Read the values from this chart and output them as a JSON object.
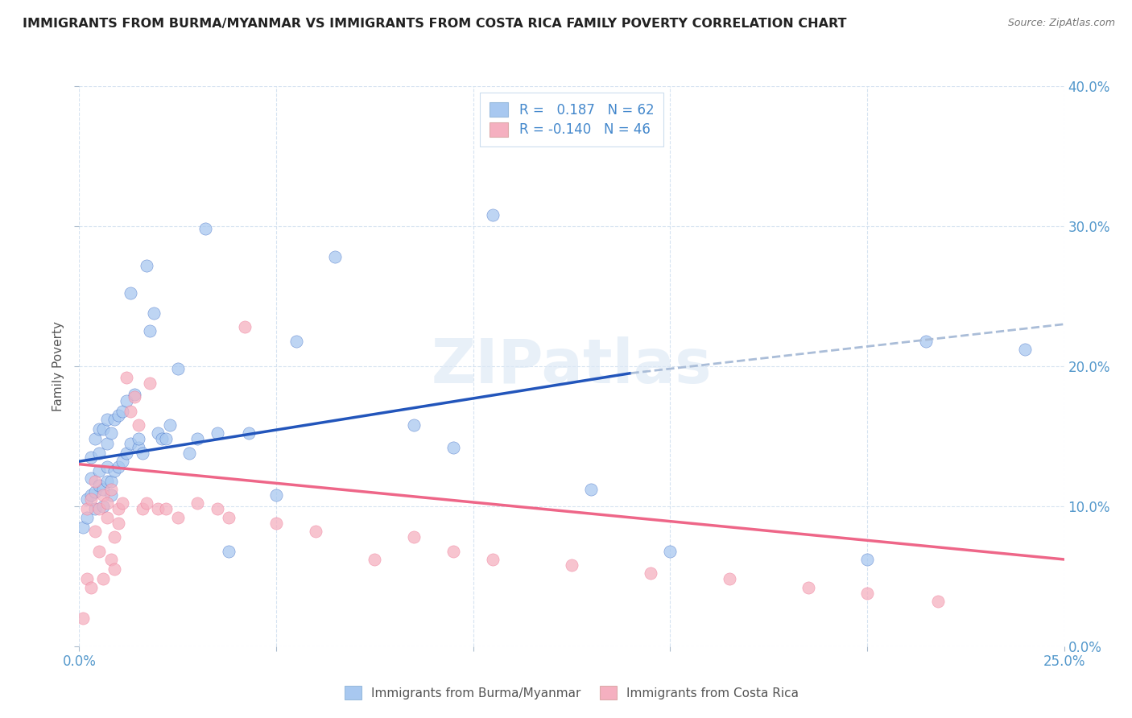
{
  "title": "IMMIGRANTS FROM BURMA/MYANMAR VS IMMIGRANTS FROM COSTA RICA FAMILY POVERTY CORRELATION CHART",
  "source": "Source: ZipAtlas.com",
  "xlim": [
    0.0,
    0.25
  ],
  "ylim": [
    0.0,
    0.4
  ],
  "blue_color": "#A8C8F0",
  "pink_color": "#F5B0C0",
  "blue_line_color": "#2255BB",
  "pink_line_color": "#EE6688",
  "dashed_line_color": "#AABDD8",
  "legend_R_blue": "0.187",
  "legend_N_blue": "62",
  "legend_R_pink": "-0.140",
  "legend_N_pink": "46",
  "legend_label_blue": "Immigrants from Burma/Myanmar",
  "legend_label_pink": "Immigrants from Costa Rica",
  "blue_scatter_x": [
    0.001,
    0.002,
    0.002,
    0.003,
    0.003,
    0.003,
    0.004,
    0.004,
    0.004,
    0.005,
    0.005,
    0.005,
    0.005,
    0.006,
    0.006,
    0.006,
    0.007,
    0.007,
    0.007,
    0.007,
    0.008,
    0.008,
    0.008,
    0.009,
    0.009,
    0.01,
    0.01,
    0.011,
    0.011,
    0.012,
    0.012,
    0.013,
    0.013,
    0.014,
    0.015,
    0.015,
    0.016,
    0.017,
    0.018,
    0.019,
    0.02,
    0.021,
    0.022,
    0.023,
    0.025,
    0.028,
    0.03,
    0.032,
    0.035,
    0.038,
    0.043,
    0.05,
    0.055,
    0.065,
    0.085,
    0.095,
    0.105,
    0.13,
    0.15,
    0.2,
    0.215,
    0.24
  ],
  "blue_scatter_y": [
    0.085,
    0.092,
    0.105,
    0.108,
    0.12,
    0.135,
    0.098,
    0.11,
    0.148,
    0.115,
    0.125,
    0.138,
    0.155,
    0.1,
    0.112,
    0.155,
    0.118,
    0.128,
    0.145,
    0.162,
    0.108,
    0.118,
    0.152,
    0.125,
    0.162,
    0.128,
    0.165,
    0.132,
    0.168,
    0.138,
    0.175,
    0.145,
    0.252,
    0.18,
    0.142,
    0.148,
    0.138,
    0.272,
    0.225,
    0.238,
    0.152,
    0.148,
    0.148,
    0.158,
    0.198,
    0.138,
    0.148,
    0.298,
    0.152,
    0.068,
    0.152,
    0.108,
    0.218,
    0.278,
    0.158,
    0.142,
    0.308,
    0.112,
    0.068,
    0.062,
    0.218,
    0.212
  ],
  "pink_scatter_x": [
    0.001,
    0.002,
    0.002,
    0.003,
    0.003,
    0.004,
    0.004,
    0.005,
    0.005,
    0.006,
    0.006,
    0.007,
    0.007,
    0.008,
    0.008,
    0.009,
    0.009,
    0.01,
    0.01,
    0.011,
    0.012,
    0.013,
    0.014,
    0.015,
    0.016,
    0.017,
    0.018,
    0.02,
    0.022,
    0.025,
    0.03,
    0.035,
    0.038,
    0.042,
    0.05,
    0.06,
    0.075,
    0.085,
    0.095,
    0.105,
    0.125,
    0.145,
    0.165,
    0.185,
    0.2,
    0.218
  ],
  "pink_scatter_y": [
    0.02,
    0.048,
    0.098,
    0.105,
    0.042,
    0.118,
    0.082,
    0.068,
    0.098,
    0.108,
    0.048,
    0.092,
    0.102,
    0.112,
    0.062,
    0.078,
    0.055,
    0.088,
    0.098,
    0.102,
    0.192,
    0.168,
    0.178,
    0.158,
    0.098,
    0.102,
    0.188,
    0.098,
    0.098,
    0.092,
    0.102,
    0.098,
    0.092,
    0.228,
    0.088,
    0.082,
    0.062,
    0.078,
    0.068,
    0.062,
    0.058,
    0.052,
    0.048,
    0.042,
    0.038,
    0.032
  ],
  "blue_line_x": [
    0.0,
    0.14
  ],
  "blue_line_y": [
    0.132,
    0.195
  ],
  "dashed_line_x": [
    0.14,
    0.25
  ],
  "dashed_line_y": [
    0.195,
    0.23
  ],
  "pink_line_x": [
    0.0,
    0.25
  ],
  "pink_line_y": [
    0.13,
    0.062
  ]
}
